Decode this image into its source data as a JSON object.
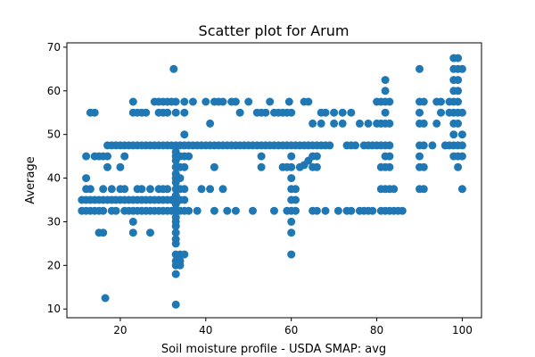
{
  "chart_data": {
    "type": "scatter",
    "title": "Scatter plot for Arum",
    "xlabel": "Soil moisture profile - USDA SMAP: avg",
    "ylabel": "Average",
    "xlim": [
      7.5,
      104.5
    ],
    "ylim": [
      8,
      71
    ],
    "xticks": [
      20,
      40,
      60,
      80,
      100
    ],
    "yticks": [
      10,
      20,
      30,
      40,
      50,
      60,
      70
    ],
    "grid": false,
    "marker_color": "#1f77b4",
    "points": [
      [
        11,
        32.5
      ],
      [
        11,
        35
      ],
      [
        12,
        32.5
      ],
      [
        12,
        35
      ],
      [
        12,
        37.5
      ],
      [
        12,
        40
      ],
      [
        12,
        45
      ],
      [
        13,
        32.5
      ],
      [
        13,
        35
      ],
      [
        13,
        37.5
      ],
      [
        13,
        55
      ],
      [
        14,
        32.5
      ],
      [
        14,
        35
      ],
      [
        14,
        45
      ],
      [
        14,
        55
      ],
      [
        15,
        27.5
      ],
      [
        15,
        32.5
      ],
      [
        15,
        35
      ],
      [
        15,
        45
      ],
      [
        16,
        27.5
      ],
      [
        16,
        32.5
      ],
      [
        16,
        35
      ],
      [
        16,
        37.5
      ],
      [
        16,
        45
      ],
      [
        16.5,
        12.5
      ],
      [
        17,
        35
      ],
      [
        17,
        42.5
      ],
      [
        17,
        45
      ],
      [
        17,
        47.5
      ],
      [
        18,
        32.5
      ],
      [
        18,
        35
      ],
      [
        18,
        37.5
      ],
      [
        18,
        47.5
      ],
      [
        19,
        32.5
      ],
      [
        19,
        35
      ],
      [
        19,
        47.5
      ],
      [
        20,
        35
      ],
      [
        20,
        37.5
      ],
      [
        20,
        42.5
      ],
      [
        20,
        47.5
      ],
      [
        21,
        32.5
      ],
      [
        21,
        35
      ],
      [
        21,
        37.5
      ],
      [
        21,
        45
      ],
      [
        21,
        47.5
      ],
      [
        22,
        32.5
      ],
      [
        22,
        35
      ],
      [
        22,
        47.5
      ],
      [
        23,
        27.5
      ],
      [
        23,
        30
      ],
      [
        23,
        32.5
      ],
      [
        23,
        35
      ],
      [
        23,
        47.5
      ],
      [
        23,
        55
      ],
      [
        23,
        57.5
      ],
      [
        24,
        32.5
      ],
      [
        24,
        35
      ],
      [
        24,
        37.5
      ],
      [
        24,
        47.5
      ],
      [
        24,
        55
      ],
      [
        25,
        32.5
      ],
      [
        25,
        35
      ],
      [
        25,
        37.5
      ],
      [
        25,
        47.5
      ],
      [
        25,
        55
      ],
      [
        26,
        32.5
      ],
      [
        26,
        35
      ],
      [
        26,
        47.5
      ],
      [
        26,
        55
      ],
      [
        27,
        27.5
      ],
      [
        27,
        32.5
      ],
      [
        27,
        35
      ],
      [
        27,
        37.5
      ],
      [
        27,
        47.5
      ],
      [
        28,
        32.5
      ],
      [
        28,
        35
      ],
      [
        28,
        47.5
      ],
      [
        28,
        57.5
      ],
      [
        29,
        32.5
      ],
      [
        29,
        35
      ],
      [
        29,
        37.5
      ],
      [
        29,
        47.5
      ],
      [
        29,
        55
      ],
      [
        29,
        57.5
      ],
      [
        30,
        32.5
      ],
      [
        30,
        35
      ],
      [
        30,
        37.5
      ],
      [
        30,
        47.5
      ],
      [
        30,
        55
      ],
      [
        30,
        57.5
      ],
      [
        31,
        32.5
      ],
      [
        31,
        35
      ],
      [
        31,
        37.5
      ],
      [
        31,
        47.5
      ],
      [
        31,
        55
      ],
      [
        31,
        57.5
      ],
      [
        32,
        32.5
      ],
      [
        32,
        35
      ],
      [
        32,
        47.5
      ],
      [
        32,
        57.5
      ],
      [
        32.5,
        65
      ],
      [
        33,
        11
      ],
      [
        33,
        18
      ],
      [
        33,
        20
      ],
      [
        33,
        21
      ],
      [
        33,
        22.5
      ],
      [
        33,
        25
      ],
      [
        33,
        26
      ],
      [
        33,
        27.5
      ],
      [
        33,
        29
      ],
      [
        33,
        30
      ],
      [
        33,
        31
      ],
      [
        33,
        32.5
      ],
      [
        33,
        34
      ],
      [
        33,
        35
      ],
      [
        33,
        36
      ],
      [
        33,
        37.5
      ],
      [
        33,
        39
      ],
      [
        33,
        40
      ],
      [
        33,
        41
      ],
      [
        33,
        42.5
      ],
      [
        33,
        44
      ],
      [
        33,
        45
      ],
      [
        33,
        46
      ],
      [
        33,
        47.5
      ],
      [
        33,
        55
      ],
      [
        33,
        57.5
      ],
      [
        34,
        20
      ],
      [
        34,
        21
      ],
      [
        34,
        22.5
      ],
      [
        34,
        32.5
      ],
      [
        34,
        35
      ],
      [
        34,
        37.5
      ],
      [
        34,
        40
      ],
      [
        34,
        42.5
      ],
      [
        34,
        45
      ],
      [
        34,
        47.5
      ],
      [
        35,
        22.5
      ],
      [
        35,
        32.5
      ],
      [
        35,
        35
      ],
      [
        35,
        37.5
      ],
      [
        35,
        42.5
      ],
      [
        35,
        45
      ],
      [
        35,
        47.5
      ],
      [
        35,
        50
      ],
      [
        35,
        55
      ],
      [
        35,
        57.5
      ],
      [
        36,
        32.5
      ],
      [
        36,
        45
      ],
      [
        36,
        47.5
      ],
      [
        37,
        47.5
      ],
      [
        37,
        57.5
      ],
      [
        38,
        47.5
      ],
      [
        38,
        32.5
      ],
      [
        39,
        37.5
      ],
      [
        39,
        47.5
      ],
      [
        40,
        47.5
      ],
      [
        40,
        57.5
      ],
      [
        41,
        37.5
      ],
      [
        41,
        47.5
      ],
      [
        41,
        52.5
      ],
      [
        42,
        32.5
      ],
      [
        42,
        42.5
      ],
      [
        42,
        47.5
      ],
      [
        42,
        57.5
      ],
      [
        43,
        47.5
      ],
      [
        43,
        57.5
      ],
      [
        44,
        37.5
      ],
      [
        44,
        47.5
      ],
      [
        44,
        57.5
      ],
      [
        45,
        32.5
      ],
      [
        45,
        47.5
      ],
      [
        46,
        47.5
      ],
      [
        46,
        57.5
      ],
      [
        47,
        32.5
      ],
      [
        47,
        47.5
      ],
      [
        47,
        57.5
      ],
      [
        48,
        47.5
      ],
      [
        48,
        55
      ],
      [
        49,
        47.5
      ],
      [
        50,
        47.5
      ],
      [
        50,
        57.5
      ],
      [
        51,
        32.5
      ],
      [
        51,
        47.5
      ],
      [
        52,
        47.5
      ],
      [
        52,
        55
      ],
      [
        53,
        42.5
      ],
      [
        53,
        45
      ],
      [
        53,
        47.5
      ],
      [
        53,
        55
      ],
      [
        54,
        47.5
      ],
      [
        54,
        55
      ],
      [
        55,
        47.5
      ],
      [
        55,
        57.5
      ],
      [
        56,
        32.5
      ],
      [
        56,
        47.5
      ],
      [
        56,
        55
      ],
      [
        57,
        47.5
      ],
      [
        57,
        55
      ],
      [
        58,
        42.5
      ],
      [
        58,
        47.5
      ],
      [
        58,
        55
      ],
      [
        59,
        32.5
      ],
      [
        59,
        42.5
      ],
      [
        59,
        47.5
      ],
      [
        59,
        55
      ],
      [
        59.5,
        57.5
      ],
      [
        60,
        22.5
      ],
      [
        60,
        27.5
      ],
      [
        60,
        30
      ],
      [
        60,
        32.5
      ],
      [
        60,
        35
      ],
      [
        60,
        37.5
      ],
      [
        60,
        40
      ],
      [
        60,
        42.5
      ],
      [
        60,
        45
      ],
      [
        60,
        47.5
      ],
      [
        60,
        55
      ],
      [
        61,
        32.5
      ],
      [
        61,
        35
      ],
      [
        61,
        37.5
      ],
      [
        61,
        47.5
      ],
      [
        62,
        42.5
      ],
      [
        62,
        47.5
      ],
      [
        63,
        43
      ],
      [
        63,
        47.5
      ],
      [
        63,
        57.5
      ],
      [
        64,
        44
      ],
      [
        64,
        47.5
      ],
      [
        64,
        57.5
      ],
      [
        65,
        32.5
      ],
      [
        65,
        42.5
      ],
      [
        65,
        45
      ],
      [
        65,
        47.5
      ],
      [
        65,
        52.5
      ],
      [
        66,
        32.5
      ],
      [
        66,
        42.5
      ],
      [
        66,
        45
      ],
      [
        66,
        47.5
      ],
      [
        67,
        47.5
      ],
      [
        67,
        52.5
      ],
      [
        67,
        55
      ],
      [
        68,
        32.5
      ],
      [
        68,
        47.5
      ],
      [
        68,
        55
      ],
      [
        69,
        47.5
      ],
      [
        70,
        52.5
      ],
      [
        70,
        55
      ],
      [
        71,
        32.5
      ],
      [
        72,
        52.5
      ],
      [
        72,
        55
      ],
      [
        73,
        32.5
      ],
      [
        73,
        47.5
      ],
      [
        74,
        32.5
      ],
      [
        74,
        47.5
      ],
      [
        74,
        55
      ],
      [
        75,
        47.5
      ],
      [
        76,
        32.5
      ],
      [
        76,
        52.5
      ],
      [
        77,
        32.5
      ],
      [
        77,
        47.5
      ],
      [
        78,
        32.5
      ],
      [
        78,
        47.5
      ],
      [
        78,
        52.5
      ],
      [
        79,
        32.5
      ],
      [
        79,
        47.5
      ],
      [
        80,
        47.5
      ],
      [
        80,
        52.5
      ],
      [
        80,
        57.5
      ],
      [
        81,
        32.5
      ],
      [
        81,
        37.5
      ],
      [
        81,
        42.5
      ],
      [
        81,
        47.5
      ],
      [
        81,
        52.5
      ],
      [
        81,
        57.5
      ],
      [
        82,
        32.5
      ],
      [
        82,
        37.5
      ],
      [
        82,
        42.5
      ],
      [
        82,
        45
      ],
      [
        82,
        47.5
      ],
      [
        82,
        52.5
      ],
      [
        82,
        55
      ],
      [
        82,
        57.5
      ],
      [
        82,
        60
      ],
      [
        82,
        62.5
      ],
      [
        83,
        32.5
      ],
      [
        83,
        37.5
      ],
      [
        83,
        42.5
      ],
      [
        83,
        45
      ],
      [
        83,
        47.5
      ],
      [
        83,
        52.5
      ],
      [
        83,
        57.5
      ],
      [
        84,
        32.5
      ],
      [
        84,
        37.5
      ],
      [
        85,
        32.5
      ],
      [
        86,
        32.5
      ],
      [
        90,
        37.5
      ],
      [
        90,
        42.5
      ],
      [
        90,
        45
      ],
      [
        90,
        47.5
      ],
      [
        90,
        52.5
      ],
      [
        90,
        55
      ],
      [
        90,
        57.5
      ],
      [
        90,
        65
      ],
      [
        91,
        37.5
      ],
      [
        91,
        42.5
      ],
      [
        91,
        47.5
      ],
      [
        91,
        52.5
      ],
      [
        91,
        57.5
      ],
      [
        93,
        47.5
      ],
      [
        94,
        52.5
      ],
      [
        94,
        57.5
      ],
      [
        95,
        55
      ],
      [
        95,
        57.5
      ],
      [
        96,
        47.5
      ],
      [
        97,
        47.5
      ],
      [
        97,
        55
      ],
      [
        97,
        57.5
      ],
      [
        98,
        45
      ],
      [
        98,
        47.5
      ],
      [
        98,
        50
      ],
      [
        98,
        52.5
      ],
      [
        98,
        55
      ],
      [
        98,
        57.5
      ],
      [
        98,
        60
      ],
      [
        98,
        62.5
      ],
      [
        98,
        65
      ],
      [
        98,
        67.5
      ],
      [
        99,
        42.5
      ],
      [
        99,
        45
      ],
      [
        99,
        47.5
      ],
      [
        99,
        52.5
      ],
      [
        99,
        55
      ],
      [
        99,
        57.5
      ],
      [
        99,
        60
      ],
      [
        99,
        62.5
      ],
      [
        99,
        65
      ],
      [
        99,
        67.5
      ],
      [
        100,
        37.5
      ],
      [
        100,
        45
      ],
      [
        100,
        47.5
      ],
      [
        100,
        50
      ],
      [
        100,
        55
      ],
      [
        100,
        65
      ]
    ]
  }
}
